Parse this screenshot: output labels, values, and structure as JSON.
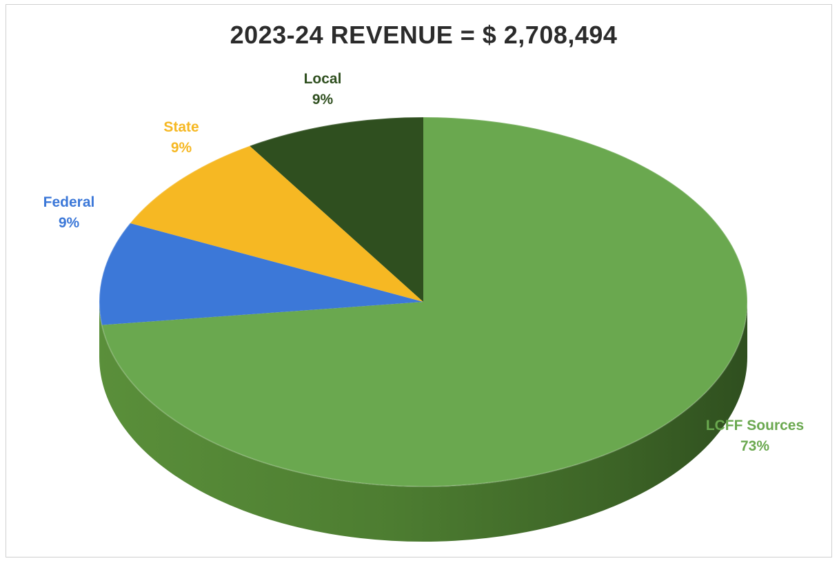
{
  "chart_data": {
    "type": "pie",
    "title": "2023-24 REVENUE = $ 2,708,494",
    "slices": [
      {
        "name": "LCFF Sources",
        "value": 73,
        "label": "73%",
        "color": "#6aa84f"
      },
      {
        "name": "Federal",
        "value": 9,
        "label": "9%",
        "color": "#3c78d8"
      },
      {
        "name": "State",
        "value": 9,
        "label": "9%",
        "color": "#f6b823"
      },
      {
        "name": "Local",
        "value": 9,
        "label": "9%",
        "color": "#2f4f1f"
      }
    ],
    "style": "3d-perspective"
  }
}
